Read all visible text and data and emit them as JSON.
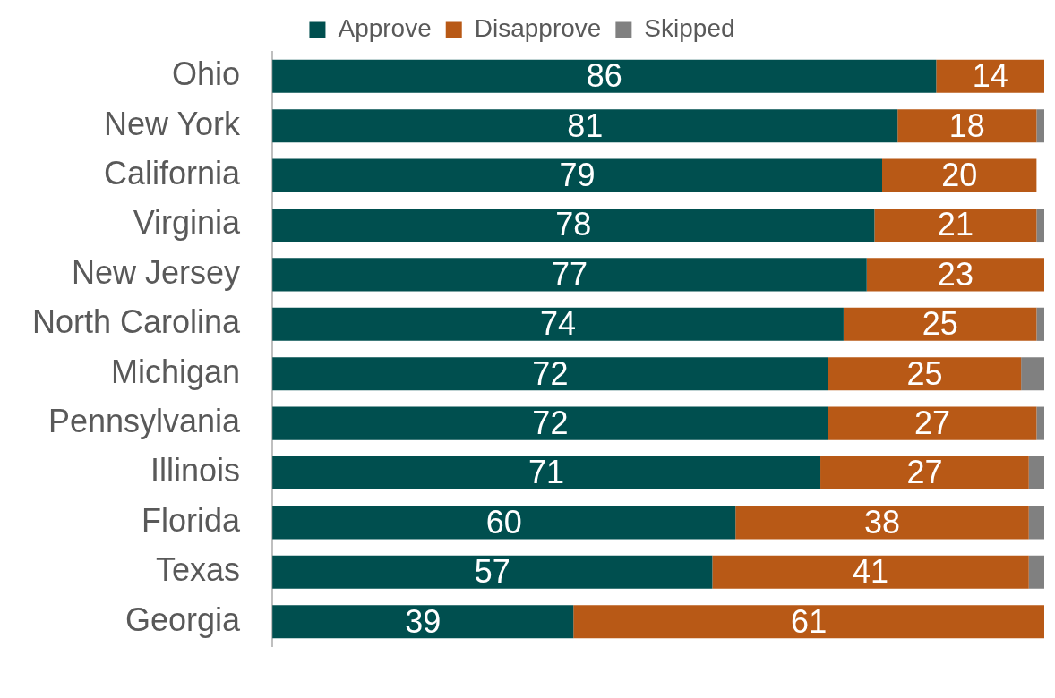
{
  "chart_data": {
    "type": "bar",
    "orientation": "horizontal",
    "stacked": true,
    "legend": "top",
    "tick_labels": "y",
    "xlim": [
      0,
      100
    ],
    "categories": [
      "Ohio",
      "New York",
      "California",
      "Virginia",
      "New Jersey",
      "North Carolina",
      "Michigan",
      "Pennsylvania",
      "Illinois",
      "Florida",
      "Texas",
      "Georgia"
    ],
    "series": [
      {
        "name": "Approve",
        "color": "#004f4f",
        "values": [
          86,
          81,
          79,
          78,
          77,
          74,
          72,
          72,
          71,
          60,
          57,
          39
        ],
        "value_labels": [
          "86",
          "81",
          "79",
          "78",
          "77",
          "74",
          "72",
          "72",
          "71",
          "60",
          "57",
          "39"
        ]
      },
      {
        "name": "Disapprove",
        "color": "#b85916",
        "values": [
          14,
          18,
          20,
          21,
          23,
          25,
          25,
          27,
          27,
          38,
          41,
          61
        ],
        "value_labels": [
          "14",
          "18",
          "20",
          "21",
          "23",
          "25",
          "25",
          "27",
          "27",
          "38",
          "41",
          "61"
        ]
      },
      {
        "name": "Skipped",
        "color": "#808080",
        "values": [
          0,
          1,
          0,
          1,
          0,
          1,
          3,
          1,
          2,
          2,
          2,
          0
        ]
      }
    ]
  }
}
